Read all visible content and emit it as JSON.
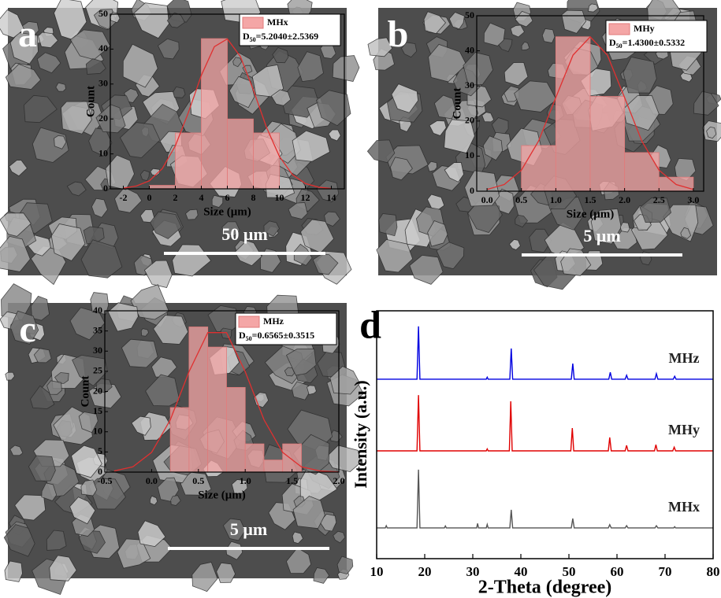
{
  "chart_data": [
    {
      "type": "histogram",
      "panel": "a",
      "name": "MHx",
      "d_symbol": "D",
      "d_subscript": "50",
      "d_value": "=5.2040±2.5369",
      "xlabel": "Size (μm)",
      "ylabel": "Count",
      "scale_bar": "50 μm",
      "color": "#f4a6a6",
      "bins": [
        0,
        2,
        4,
        6,
        8,
        10
      ],
      "values": [
        1,
        16,
        43,
        20,
        16
      ],
      "fit": {
        "color": "#e03030",
        "x": [
          -2,
          -1,
          0,
          1,
          2,
          3,
          4,
          5,
          6,
          7,
          8,
          9,
          10,
          11,
          12,
          13,
          14
        ],
        "values": [
          0.2,
          0.8,
          2.3,
          5.8,
          12.3,
          21.8,
          32.5,
          40.7,
          42.9,
          37.9,
          28.3,
          17.7,
          9.3,
          4.1,
          1.5,
          0.5,
          0.1
        ]
      },
      "xlim": [
        -3,
        15
      ],
      "xticks": [
        -2,
        0,
        2,
        4,
        6,
        8,
        10,
        12,
        14
      ],
      "ylim": [
        0,
        50
      ],
      "yticks": [
        0,
        10,
        20,
        30,
        40,
        50
      ]
    },
    {
      "type": "histogram",
      "panel": "b",
      "name": "MHy",
      "d_symbol": "D",
      "d_subscript": "50",
      "d_value": "=1.4300±0.5332",
      "xlabel": "Size (μm)",
      "ylabel": "Count",
      "scale_bar": "5 μm",
      "color": "#f4a6a6",
      "bins": [
        0.5,
        1,
        1.5,
        2,
        2.5,
        3
      ],
      "values": [
        13,
        44,
        27,
        11,
        4
      ],
      "fit": {
        "color": "#e03030",
        "x": [
          0,
          0.25,
          0.5,
          0.75,
          1,
          1.25,
          1.5,
          1.75,
          2,
          2.25,
          2.5,
          2.75,
          3
        ],
        "values": [
          0.5,
          1.9,
          6,
          14.3,
          26.7,
          38.8,
          44,
          38.8,
          26.7,
          14.3,
          6,
          1.9,
          0.5
        ]
      },
      "xlim": [
        -0.15,
        3.15
      ],
      "xticks": [
        {
          "value": 0,
          "label": "0.0"
        },
        0.5,
        {
          "value": 1,
          "label": "1.0"
        },
        1.5,
        {
          "value": 2,
          "label": "2.0"
        },
        2.5,
        {
          "value": 3,
          "label": "3.0"
        }
      ],
      "ylim": [
        0,
        50
      ],
      "yticks": [
        0,
        10,
        20,
        30,
        40,
        50
      ]
    },
    {
      "type": "histogram",
      "panel": "c",
      "name": "MHz",
      "d_symbol": "D",
      "d_subscript": "50",
      "d_value": "=0.6565±0.3515",
      "xlabel": "Size (μm)",
      "ylabel": "Count",
      "scale_bar": "5 μm",
      "color": "#f4a6a6",
      "bins": [
        0.2,
        0.4,
        0.6,
        0.8,
        1.0,
        1.2,
        1.4,
        1.6
      ],
      "values": [
        16,
        36,
        31,
        21,
        7,
        3,
        7
      ],
      "fit": {
        "color": "#e03030",
        "x": [
          -0.4,
          -0.2,
          0,
          0.2,
          0.4,
          0.6,
          0.8,
          1.0,
          1.2,
          1.4,
          1.6,
          1.8,
          2.0
        ],
        "values": [
          0.3,
          1.3,
          4.9,
          13,
          24.9,
          34.6,
          34.6,
          24.9,
          13,
          4.9,
          1.3,
          0.3,
          0.04
        ]
      },
      "xlim": [
        -0.5,
        2.0
      ],
      "xticks": [
        -0.5,
        {
          "value": 0,
          "label": "0.0"
        },
        0.5,
        {
          "value": 1,
          "label": "1.0"
        },
        1.5,
        {
          "value": 2,
          "label": "2.0"
        }
      ],
      "ylim": [
        0,
        40
      ],
      "yticks": [
        0,
        5,
        10,
        15,
        20,
        25,
        30,
        35,
        40
      ]
    },
    {
      "type": "line",
      "panel": "d",
      "xlabel": "2-Theta (degree)",
      "ylabel": "Intensity (a.u.)",
      "xlim": [
        10,
        80
      ],
      "xticks": [
        10,
        20,
        30,
        40,
        50,
        60,
        70,
        80
      ],
      "ylim": [
        0,
        100
      ],
      "series": [
        {
          "name": "MHx",
          "color": "#555555",
          "x": [
            10,
            11.8,
            12,
            12.2,
            18.4,
            18.7,
            19.0,
            24.1,
            24.3,
            24.5,
            30.8,
            31,
            31.2,
            32.8,
            33,
            33.2,
            37.7,
            38,
            38.3,
            50.5,
            50.8,
            51.1,
            58.2,
            58.5,
            58.8,
            61.7,
            62,
            62.3,
            67.9,
            68.2,
            68.5,
            71.8,
            72,
            72.2,
            80
          ],
          "values": [
            12.4,
            12.4,
            13.3,
            12.4,
            12.4,
            35.9,
            12.4,
            12.4,
            13.2,
            12.4,
            12.4,
            14.2,
            12.4,
            12.4,
            13.8,
            12.4,
            12.4,
            19.7,
            12.4,
            12.4,
            16.2,
            12.4,
            12.4,
            13.7,
            12.4,
            12.4,
            13.3,
            12.4,
            12.4,
            13.3,
            12.4,
            12.4,
            12.9,
            12.4,
            12.4
          ]
        },
        {
          "name": "MHy",
          "color": "#e00000",
          "x": [
            10,
            18.4,
            18.7,
            19.0,
            32.8,
            33,
            33.2,
            37.6,
            37.9,
            38.2,
            50.4,
            50.7,
            51.0,
            58.2,
            58.5,
            58.8,
            61.7,
            62,
            62.3,
            67.8,
            68.1,
            68.4,
            71.6,
            71.9,
            72.2,
            80
          ],
          "values": [
            43.5,
            43.5,
            66,
            43.5,
            43.5,
            44.3,
            43.5,
            43.5,
            63.5,
            43.5,
            43.5,
            52.7,
            43.5,
            43.5,
            48.9,
            43.5,
            43.5,
            45.7,
            43.5,
            43.5,
            46,
            43.5,
            43.5,
            45,
            43.5,
            43.5
          ]
        },
        {
          "name": "MHz",
          "color": "#0000e0",
          "x": [
            10,
            18.4,
            18.7,
            19.0,
            32.8,
            33,
            33.2,
            37.7,
            38,
            38.3,
            50.5,
            50.8,
            51.1,
            58.3,
            58.6,
            58.9,
            61.7,
            62,
            62.3,
            67.9,
            68.2,
            68.5,
            71.7,
            72,
            72.3,
            80
          ],
          "values": [
            72.4,
            72.4,
            93.7,
            72.4,
            72.4,
            73.2,
            72.4,
            72.4,
            84.8,
            72.4,
            72.4,
            78.7,
            72.4,
            72.4,
            75.2,
            72.4,
            72.4,
            74,
            72.4,
            72.4,
            74.6,
            72.4,
            72.4,
            73.6,
            72.4,
            72.4
          ]
        }
      ]
    }
  ]
}
